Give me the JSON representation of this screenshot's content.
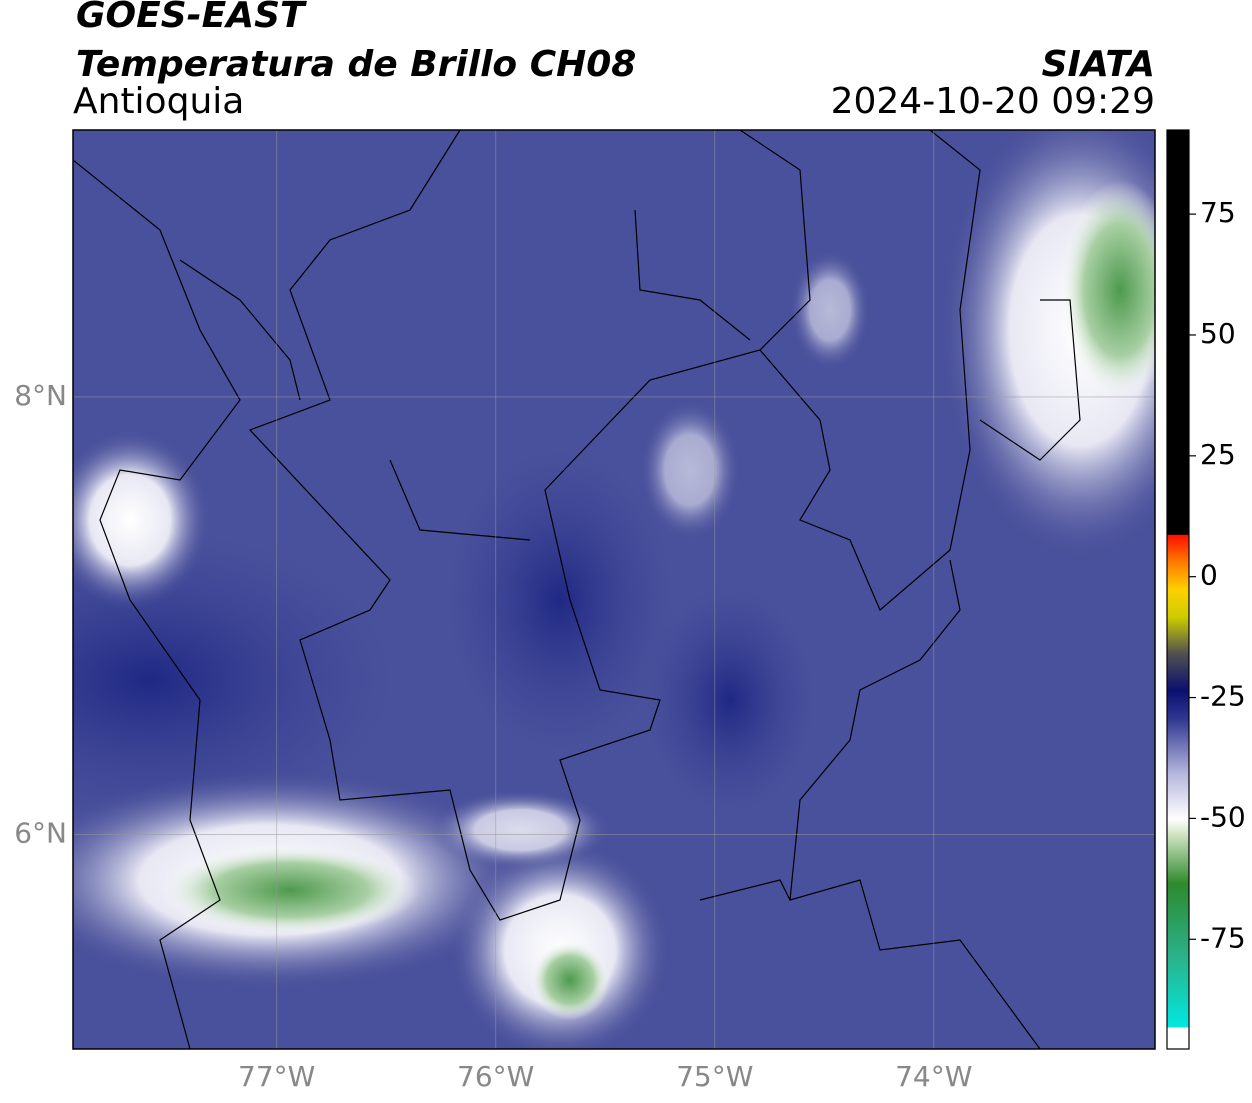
{
  "header": {
    "title": "GOES-EAST",
    "subtitle": "Temperatura de Brillo CH08",
    "region": "Antioquia",
    "source": "SIATA",
    "timestamp": "2024-10-20 09:29"
  },
  "map": {
    "lonlim": [
      -77.93,
      -72.99
    ],
    "latlim": [
      5.02,
      9.22
    ],
    "lon_ticks": [
      {
        "value": -77,
        "label": "77°W"
      },
      {
        "value": -76,
        "label": "76°W"
      },
      {
        "value": -75,
        "label": "75°W"
      },
      {
        "value": -74,
        "label": "74°W"
      }
    ],
    "lat_ticks": [
      {
        "value": 8,
        "label": "8°N"
      },
      {
        "value": 6,
        "label": "6°N"
      }
    ]
  },
  "colorbar": {
    "lim": [
      -97.7,
      92.4
    ],
    "ticks": [
      75,
      50,
      25,
      0,
      -25,
      -50,
      -75
    ]
  }
}
